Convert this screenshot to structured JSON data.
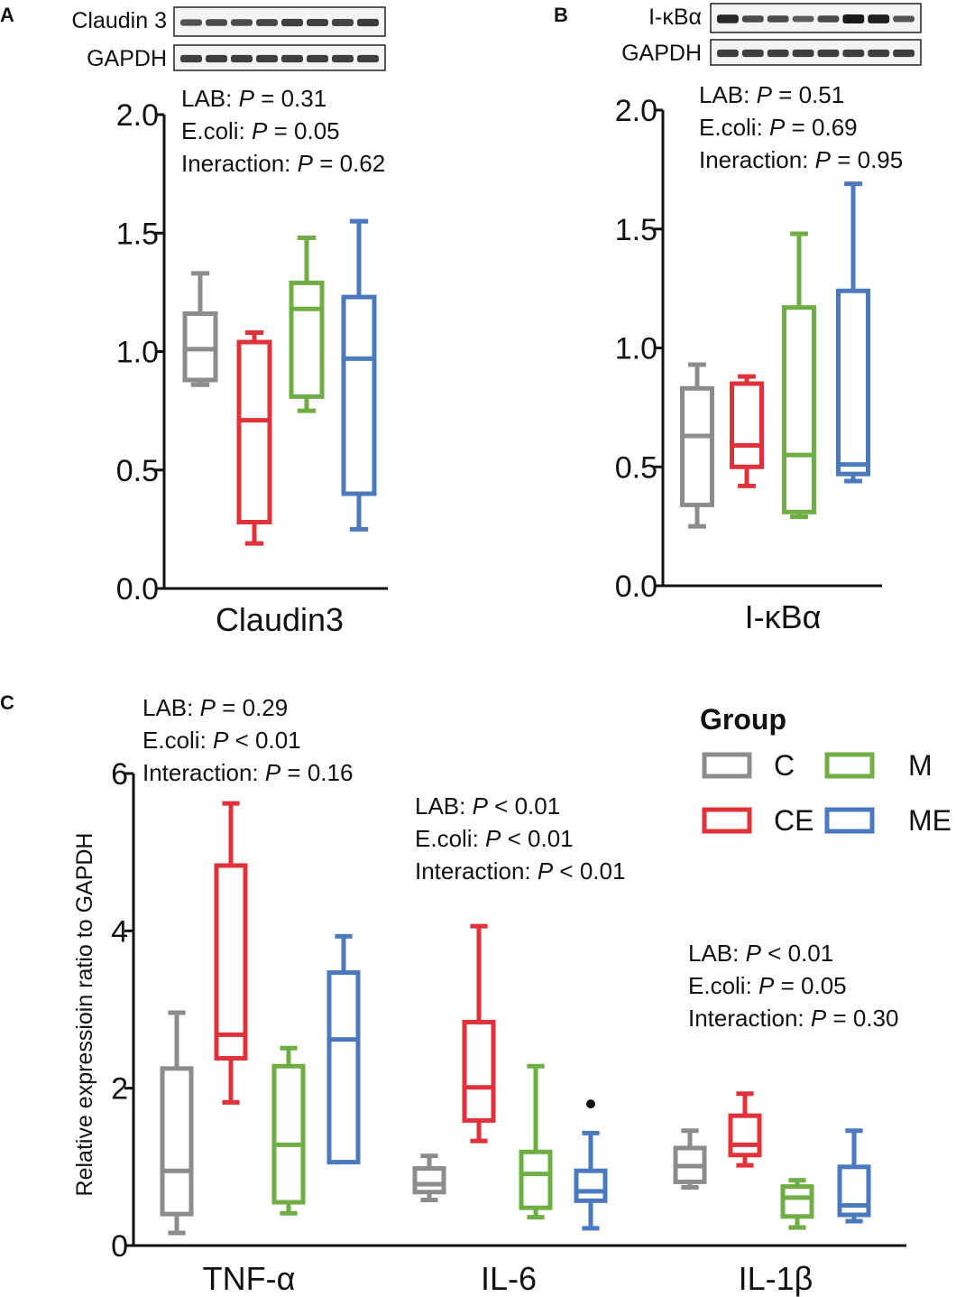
{
  "colors": {
    "C": "#8c8c8c",
    "CE": "#e0323a",
    "M": "#6fad45",
    "ME": "#4a79bd",
    "axis": "#111111"
  },
  "legend": {
    "title": "Group",
    "entries": [
      {
        "key": "C",
        "label": "C"
      },
      {
        "key": "M",
        "label": "M"
      },
      {
        "key": "CE",
        "label": "CE"
      },
      {
        "key": "ME",
        "label": "ME"
      }
    ]
  },
  "ylabel_c": "Relative expressioin ratio to GAPDH",
  "chart_data": [
    {
      "panel": "A",
      "type": "box",
      "blots": {
        "top": "Claudin 3",
        "bottom": "GAPDH"
      },
      "blot_band_intensity": {
        "top": [
          0.55,
          0.6,
          0.6,
          0.62,
          0.7,
          0.68,
          0.65,
          0.72
        ],
        "bottom": [
          0.7,
          0.7,
          0.7,
          0.7,
          0.7,
          0.7,
          0.7,
          0.7
        ]
      },
      "xlabel": "Claudin3",
      "ylim": [
        0,
        2
      ],
      "yticks": [
        "0.0",
        "0.5",
        "1.0",
        "1.5",
        "2.0"
      ],
      "stats": [
        "LAB: P = 0.31",
        "E.coli: P = 0.05",
        "Ineraction: P = 0.62"
      ],
      "boxes": [
        {
          "group": "C",
          "min": 0.86,
          "q1": 0.88,
          "median": 1.01,
          "q3": 1.16,
          "max": 1.33
        },
        {
          "group": "CE",
          "min": 0.19,
          "q1": 0.28,
          "median": 0.71,
          "q3": 1.04,
          "max": 1.08
        },
        {
          "group": "M",
          "min": 0.75,
          "q1": 0.81,
          "median": 1.18,
          "q3": 1.29,
          "max": 1.48
        },
        {
          "group": "ME",
          "min": 0.25,
          "q1": 0.4,
          "median": 0.97,
          "q3": 1.23,
          "max": 1.55
        }
      ]
    },
    {
      "panel": "B",
      "type": "box",
      "blots": {
        "top": "I-κBα",
        "bottom": "GAPDH"
      },
      "blot_band_intensity": {
        "top": [
          0.9,
          0.6,
          0.6,
          0.45,
          0.6,
          1.0,
          0.95,
          0.5
        ],
        "bottom": [
          0.7,
          0.7,
          0.7,
          0.7,
          0.7,
          0.7,
          0.7,
          0.7
        ]
      },
      "xlabel": "I-κBα",
      "ylim": [
        0,
        2
      ],
      "yticks": [
        "0.0",
        "0.5",
        "1.0",
        "1.5",
        "2.0"
      ],
      "stats": [
        "LAB: P = 0.51",
        "E.coli: P = 0.69",
        "Ineraction: P = 0.95"
      ],
      "boxes": [
        {
          "group": "C",
          "min": 0.25,
          "q1": 0.34,
          "median": 0.63,
          "q3": 0.83,
          "max": 0.93
        },
        {
          "group": "CE",
          "min": 0.42,
          "q1": 0.5,
          "median": 0.59,
          "q3": 0.85,
          "max": 0.88
        },
        {
          "group": "M",
          "min": 0.29,
          "q1": 0.31,
          "median": 0.55,
          "q3": 1.17,
          "max": 1.48
        },
        {
          "group": "ME",
          "min": 0.44,
          "q1": 0.47,
          "median": 0.51,
          "q3": 1.24,
          "max": 1.69
        }
      ]
    },
    {
      "panel": "C",
      "type": "box",
      "ylabel": "Relative expressioin ratio to GAPDH",
      "ylim": [
        0,
        6
      ],
      "yticks": [
        "0",
        "2",
        "4",
        "6"
      ],
      "categories": [
        "TNF-α",
        "IL-6",
        "IL-1β"
      ],
      "stats": [
        [
          "LAB: P = 0.29",
          "E.coli: P < 0.01",
          "Interaction: P = 0.16"
        ],
        [
          "LAB: P < 0.01",
          "E.coli: P < 0.01",
          "Interaction: P < 0.01"
        ],
        [
          "LAB: P < 0.01",
          "E.coli: P = 0.05",
          "Interaction: P = 0.30"
        ]
      ],
      "boxes": [
        [
          {
            "group": "C",
            "min": 0.16,
            "q1": 0.4,
            "median": 0.95,
            "q3": 2.25,
            "max": 2.96
          },
          {
            "group": "CE",
            "min": 1.82,
            "q1": 2.38,
            "median": 2.68,
            "q3": 4.83,
            "max": 5.62
          },
          {
            "group": "M",
            "min": 0.41,
            "q1": 0.55,
            "median": 1.28,
            "q3": 2.28,
            "max": 2.51
          },
          {
            "group": "ME",
            "min": 1.06,
            "q1": 1.06,
            "median": 2.62,
            "q3": 3.47,
            "max": 3.93
          }
        ],
        [
          {
            "group": "C",
            "min": 0.58,
            "q1": 0.68,
            "median": 0.78,
            "q3": 0.98,
            "max": 1.14
          },
          {
            "group": "CE",
            "min": 1.33,
            "q1": 1.59,
            "median": 2.01,
            "q3": 2.84,
            "max": 4.06
          },
          {
            "group": "M",
            "min": 0.36,
            "q1": 0.48,
            "median": 0.91,
            "q3": 1.19,
            "max": 2.28
          },
          {
            "group": "ME",
            "min": 0.22,
            "q1": 0.57,
            "median": 0.69,
            "q3": 0.95,
            "max": 1.43,
            "outliers": [
              1.8
            ]
          }
        ],
        [
          {
            "group": "C",
            "min": 0.74,
            "q1": 0.81,
            "median": 1.01,
            "q3": 1.24,
            "max": 1.46
          },
          {
            "group": "CE",
            "min": 1.02,
            "q1": 1.15,
            "median": 1.28,
            "q3": 1.65,
            "max": 1.93
          },
          {
            "group": "M",
            "min": 0.23,
            "q1": 0.37,
            "median": 0.61,
            "q3": 0.75,
            "max": 0.83
          },
          {
            "group": "ME",
            "min": 0.31,
            "q1": 0.39,
            "median": 0.51,
            "q3": 1.0,
            "max": 1.46
          }
        ]
      ]
    }
  ]
}
